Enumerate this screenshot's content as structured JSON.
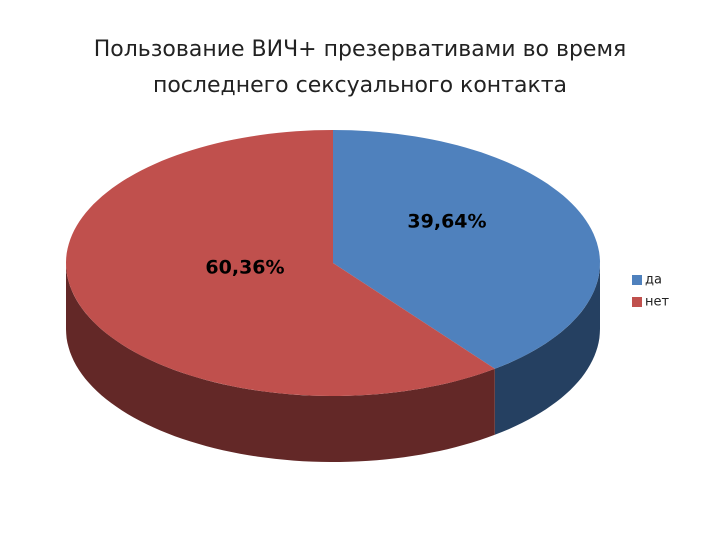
{
  "chart_data": {
    "type": "pie3d",
    "title": [
      "Пользование ВИЧ+ презервативами во время",
      "последнего сексуального контакта"
    ],
    "categories": [
      "да",
      "нет"
    ],
    "values": [
      39.64,
      60.36
    ],
    "value_labels": [
      "39,64%",
      "60,36%"
    ],
    "colors": [
      "#4f81bd",
      "#c0504d"
    ],
    "side_colors": [
      "#254061",
      "#632827"
    ],
    "legend": "right"
  }
}
